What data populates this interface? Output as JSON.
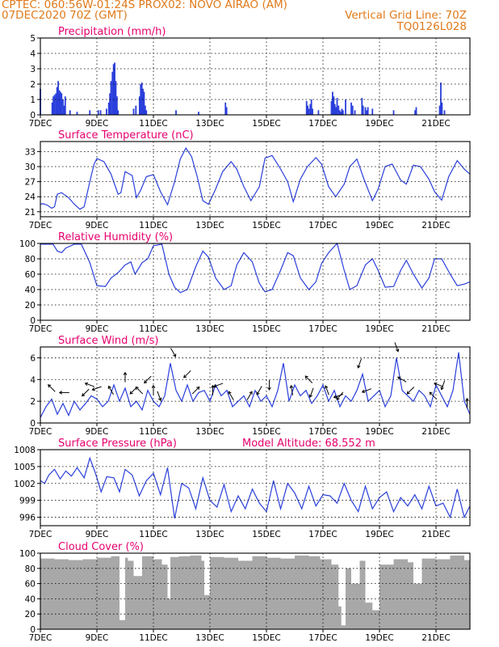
{
  "header": {
    "line1": "CPTEC:   060:56W-01:24S   PROX02: NOVO AIRAO (AM)",
    "line2": "07DEC2020 70Z (GMT)",
    "right1": "Vertical Grid Line: 70Z",
    "right2": "TQ0126L028"
  },
  "colors": {
    "line": "#2a3fdb",
    "bar": "#2a3fdb",
    "cloud": "#a8a8a8",
    "title": "#e6006e",
    "header": "#e07a1a",
    "grid": "#000000",
    "arrow": "#000000"
  },
  "chart_data": [
    {
      "type": "bar",
      "title": "Precipitation (mm/h)",
      "ylim": [
        0,
        5
      ],
      "yticks": [
        0,
        1,
        2,
        3,
        4,
        5
      ],
      "x_range": [
        7,
        22.2
      ],
      "xticks": [
        {
          "x": 7,
          "label": "7DEC"
        },
        {
          "x": 9,
          "label": "9DEC"
        },
        {
          "x": 11,
          "label": "11DEC"
        },
        {
          "x": 13,
          "label": "13DEC"
        },
        {
          "x": 15,
          "label": "15DEC"
        },
        {
          "x": 17,
          "label": "17DEC"
        },
        {
          "x": 19,
          "label": "19DEC"
        },
        {
          "x": 21,
          "label": "21DEC"
        }
      ],
      "x": [
        7.0,
        7.42,
        7.46,
        7.5,
        7.55,
        7.59,
        7.63,
        7.67,
        7.71,
        7.75,
        7.8,
        7.84,
        7.88,
        8.05,
        8.3,
        8.75,
        9.05,
        9.13,
        9.34,
        9.42,
        9.46,
        9.5,
        9.55,
        9.59,
        9.63,
        9.67,
        9.71,
        9.75,
        10.3,
        10.38,
        10.51,
        10.55,
        10.59,
        10.63,
        10.67,
        10.71,
        10.75,
        11.8,
        12.6,
        13.55,
        13.59,
        16.42,
        16.46,
        16.5,
        16.55,
        16.59,
        16.63,
        16.84,
        17.3,
        17.34,
        17.38,
        17.42,
        17.46,
        17.5,
        17.55,
        17.59,
        17.63,
        17.67,
        17.71,
        17.8,
        18.0,
        18.05,
        18.13,
        18.38,
        18.42,
        18.5,
        18.55,
        18.59,
        18.75,
        19.5,
        20.26,
        20.3,
        21.13,
        21.17,
        21.21,
        21.3
      ],
      "values": [
        1.7,
        0.8,
        1.2,
        1.3,
        1.4,
        1.8,
        2.2,
        1.6,
        1.5,
        1.4,
        1.0,
        0.6,
        1.2,
        0.3,
        0.2,
        0.3,
        0.3,
        0.3,
        0.4,
        0.8,
        1.4,
        2.2,
        2.8,
        3.3,
        3.4,
        2.2,
        1.2,
        0.3,
        0.4,
        0.6,
        1.2,
        2.0,
        2.1,
        1.7,
        1.5,
        0.6,
        0.3,
        0.3,
        0.2,
        0.8,
        0.5,
        0.9,
        0.6,
        0.4,
        0.7,
        1.0,
        0.4,
        0.3,
        0.9,
        1.5,
        1.2,
        0.7,
        0.5,
        1.1,
        0.6,
        0.3,
        0.2,
        0.4,
        0.3,
        1.0,
        0.8,
        0.6,
        0.3,
        1.1,
        0.6,
        0.5,
        0.3,
        0.5,
        0.4,
        0.3,
        0.3,
        0.5,
        0.6,
        2.1,
        0.8,
        0.3
      ]
    },
    {
      "type": "line",
      "title": "Surface Temperature (nC)",
      "ylim": [
        20,
        35
      ],
      "yticks": [
        21,
        24,
        27,
        30,
        33
      ],
      "x_range": [
        7,
        22.2
      ],
      "xticks": [
        {
          "x": 7,
          "label": "7DEC"
        },
        {
          "x": 9,
          "label": "9DEC"
        },
        {
          "x": 11,
          "label": "11DEC"
        },
        {
          "x": 13,
          "label": "13DEC"
        },
        {
          "x": 15,
          "label": "15DEC"
        },
        {
          "x": 17,
          "label": "17DEC"
        },
        {
          "x": 19,
          "label": "19DEC"
        },
        {
          "x": 21,
          "label": "21DEC"
        }
      ],
      "x": [
        7.0,
        7.1,
        7.25,
        7.4,
        7.5,
        7.6,
        7.75,
        8.0,
        8.2,
        8.4,
        8.55,
        8.75,
        8.9,
        9.0,
        9.25,
        9.5,
        9.75,
        9.85,
        10.0,
        10.25,
        10.4,
        10.55,
        10.75,
        11.0,
        11.25,
        11.5,
        11.75,
        11.95,
        12.15,
        12.35,
        12.55,
        12.75,
        12.95,
        13.2,
        13.45,
        13.75,
        13.95,
        14.2,
        14.45,
        14.75,
        14.95,
        15.2,
        15.45,
        15.75,
        15.95,
        16.2,
        16.45,
        16.75,
        16.95,
        17.2,
        17.45,
        17.75,
        17.95,
        18.2,
        18.45,
        18.75,
        18.95,
        19.2,
        19.45,
        19.75,
        19.95,
        20.2,
        20.45,
        20.75,
        20.95,
        21.2,
        21.45,
        21.75,
        22.0,
        22.2
      ],
      "values": [
        22.5,
        22.6,
        22.3,
        21.7,
        22.0,
        24.5,
        24.8,
        23.8,
        22.5,
        21.5,
        22.0,
        27.0,
        30.5,
        31.6,
        31.0,
        28.5,
        24.5,
        24.8,
        29.0,
        28.2,
        23.8,
        25.3,
        28.0,
        28.4,
        25.0,
        22.4,
        27.0,
        31.5,
        33.7,
        32.0,
        28.0,
        23.2,
        22.5,
        25.5,
        29.0,
        31.0,
        29.5,
        26.0,
        23.2,
        26.0,
        31.7,
        32.2,
        30.0,
        27.0,
        23.0,
        27.5,
        30.0,
        31.8,
        30.5,
        26.0,
        24.0,
        26.5,
        30.0,
        31.5,
        27.5,
        23.2,
        25.5,
        30.0,
        30.5,
        27.3,
        26.5,
        30.3,
        30.0,
        27.5,
        25.0,
        23.3,
        28.0,
        31.2,
        29.5,
        28.5
      ]
    },
    {
      "type": "line",
      "title": "Relative Humidity (%)",
      "ylim": [
        0,
        100
      ],
      "yticks": [
        0,
        20,
        40,
        60,
        80,
        100
      ],
      "x_range": [
        7,
        22.2
      ],
      "xticks": [
        {
          "x": 7,
          "label": "7DEC"
        },
        {
          "x": 9,
          "label": "9DEC"
        },
        {
          "x": 11,
          "label": "11DEC"
        },
        {
          "x": 13,
          "label": "13DEC"
        },
        {
          "x": 15,
          "label": "15DEC"
        },
        {
          "x": 17,
          "label": "17DEC"
        },
        {
          "x": 19,
          "label": "19DEC"
        },
        {
          "x": 21,
          "label": "21DEC"
        }
      ],
      "x": [
        7.0,
        7.3,
        7.45,
        7.6,
        7.75,
        7.9,
        8.2,
        8.45,
        8.75,
        9.0,
        9.3,
        9.5,
        9.75,
        10.0,
        10.2,
        10.35,
        10.6,
        10.8,
        11.0,
        11.3,
        11.55,
        11.75,
        11.95,
        12.2,
        12.5,
        12.75,
        12.95,
        13.2,
        13.5,
        13.75,
        13.95,
        14.2,
        14.5,
        14.75,
        14.95,
        15.2,
        15.5,
        15.75,
        15.95,
        16.2,
        16.5,
        16.75,
        16.95,
        17.2,
        17.5,
        17.75,
        17.95,
        18.2,
        18.5,
        18.75,
        18.95,
        19.2,
        19.5,
        19.75,
        19.95,
        20.2,
        20.5,
        20.75,
        20.95,
        21.2,
        21.5,
        21.75,
        22.0,
        22.2
      ],
      "values": [
        99,
        99,
        99,
        90,
        88,
        94,
        99,
        99,
        75,
        45,
        44,
        55,
        62,
        72,
        76,
        60,
        75,
        80,
        97,
        99,
        60,
        43,
        36,
        40,
        70,
        90,
        82,
        55,
        40,
        45,
        72,
        88,
        76,
        48,
        37,
        40,
        65,
        88,
        84,
        55,
        40,
        50,
        74,
        88,
        100,
        65,
        40,
        45,
        72,
        80,
        65,
        43,
        44,
        65,
        78,
        60,
        42,
        55,
        80,
        80,
        60,
        45,
        47,
        50
      ]
    },
    {
      "type": "line",
      "title": "Surface Wind (m/s)",
      "ylim": [
        0,
        7
      ],
      "yticks": [
        0,
        2,
        4,
        6
      ],
      "x_range": [
        7,
        22.2
      ],
      "xticks": [
        {
          "x": 7,
          "label": "7DEC"
        },
        {
          "x": 9,
          "label": "9DEC"
        },
        {
          "x": 11,
          "label": "11DEC"
        },
        {
          "x": 13,
          "label": "13DEC"
        },
        {
          "x": 15,
          "label": "15DEC"
        },
        {
          "x": 17,
          "label": "17DEC"
        },
        {
          "x": 19,
          "label": "19DEC"
        },
        {
          "x": 21,
          "label": "21DEC"
        }
      ],
      "x": [
        7.0,
        7.2,
        7.4,
        7.6,
        7.8,
        8.0,
        8.2,
        8.4,
        8.6,
        8.8,
        9.0,
        9.2,
        9.4,
        9.6,
        9.8,
        10.0,
        10.2,
        10.4,
        10.6,
        10.8,
        11.0,
        11.2,
        11.4,
        11.6,
        11.8,
        12.0,
        12.2,
        12.4,
        12.6,
        12.8,
        13.0,
        13.2,
        13.4,
        13.6,
        13.8,
        14.0,
        14.2,
        14.4,
        14.6,
        14.8,
        15.0,
        15.2,
        15.4,
        15.6,
        15.8,
        16.0,
        16.2,
        16.4,
        16.6,
        16.8,
        17.0,
        17.2,
        17.4,
        17.6,
        17.8,
        18.0,
        18.2,
        18.4,
        18.6,
        18.8,
        19.0,
        19.2,
        19.4,
        19.6,
        19.8,
        20.0,
        20.2,
        20.4,
        20.6,
        20.8,
        21.0,
        21.2,
        21.4,
        21.6,
        21.8,
        22.0,
        22.2
      ],
      "values": [
        0.5,
        1.5,
        2.2,
        0.8,
        1.8,
        0.7,
        2.0,
        1.2,
        1.8,
        2.5,
        2.2,
        1.5,
        2.0,
        3.5,
        2.0,
        3.2,
        1.5,
        2.0,
        1.2,
        3.0,
        2.0,
        1.5,
        2.5,
        5.5,
        3.0,
        2.0,
        3.5,
        2.0,
        2.8,
        3.0,
        2.0,
        3.5,
        2.5,
        3.0,
        1.5,
        2.0,
        2.5,
        1.5,
        3.0,
        2.0,
        2.5,
        1.5,
        3.0,
        5.5,
        2.0,
        3.5,
        2.5,
        3.0,
        1.8,
        2.5,
        3.5,
        2.0,
        3.0,
        1.5,
        2.5,
        2.0,
        3.0,
        4.5,
        2.0,
        2.5,
        3.0,
        1.5,
        2.5,
        6.0,
        3.0,
        2.5,
        2.0,
        3.0,
        2.5,
        1.5,
        3.5,
        2.5,
        1.5,
        3.0,
        6.5,
        2.0,
        0.8
      ],
      "arrows": [
        {
          "x": 7.4,
          "dir": 135
        },
        {
          "x": 7.85,
          "dir": 180
        },
        {
          "x": 8.6,
          "dir": 225
        },
        {
          "x": 8.75,
          "dir": 160
        },
        {
          "x": 9.0,
          "dir": 200
        },
        {
          "x": 9.5,
          "dir": 120
        },
        {
          "x": 10.0,
          "dir": 90
        },
        {
          "x": 10.3,
          "dir": 225
        },
        {
          "x": 10.5,
          "dir": 135
        },
        {
          "x": 10.8,
          "dir": 225
        },
        {
          "x": 11.0,
          "dir": 90
        },
        {
          "x": 11.2,
          "dir": 290
        },
        {
          "x": 11.7,
          "dir": 300
        },
        {
          "x": 12.2,
          "dir": 225
        },
        {
          "x": 12.5,
          "dir": 45
        },
        {
          "x": 13.1,
          "dir": 90
        },
        {
          "x": 13.3,
          "dir": 200
        },
        {
          "x": 13.75,
          "dir": 120
        },
        {
          "x": 14.4,
          "dir": 60
        },
        {
          "x": 14.75,
          "dir": 240
        },
        {
          "x": 15.1,
          "dir": 270
        },
        {
          "x": 15.9,
          "dir": 100
        },
        {
          "x": 16.5,
          "dir": 135
        },
        {
          "x": 16.6,
          "dir": 250
        },
        {
          "x": 17.15,
          "dir": 110
        },
        {
          "x": 17.55,
          "dir": 200
        },
        {
          "x": 17.6,
          "dir": 230
        },
        {
          "x": 18.3,
          "dir": 250
        },
        {
          "x": 18.55,
          "dir": 200
        },
        {
          "x": 19.6,
          "dir": 290
        },
        {
          "x": 19.8,
          "dir": 150
        },
        {
          "x": 20.1,
          "dir": 225
        },
        {
          "x": 20.9,
          "dir": 135
        },
        {
          "x": 21.1,
          "dir": 160
        },
        {
          "x": 21.25,
          "dir": 250
        },
        {
          "x": 22.1,
          "dir": 90
        }
      ]
    },
    {
      "type": "line",
      "title": "Surface Pressure (hPa)",
      "annotation": "Model Altitude: 68.552  m",
      "ylim": [
        994.5,
        1008
      ],
      "yticks": [
        996,
        999,
        1002,
        1005,
        1008
      ],
      "x_range": [
        7,
        22.2
      ],
      "xticks": [
        {
          "x": 7,
          "label": "7DEC"
        },
        {
          "x": 9,
          "label": "9DEC"
        },
        {
          "x": 11,
          "label": "11DEC"
        },
        {
          "x": 13,
          "label": "13DEC"
        },
        {
          "x": 15,
          "label": "15DEC"
        },
        {
          "x": 17,
          "label": "17DEC"
        },
        {
          "x": 19,
          "label": "19DEC"
        },
        {
          "x": 21,
          "label": "21DEC"
        }
      ],
      "x": [
        7.0,
        7.15,
        7.3,
        7.5,
        7.7,
        7.9,
        8.1,
        8.3,
        8.55,
        8.75,
        8.95,
        9.15,
        9.35,
        9.6,
        9.8,
        10.0,
        10.25,
        10.5,
        10.75,
        11.0,
        11.25,
        11.5,
        11.75,
        12.0,
        12.25,
        12.5,
        12.75,
        13.0,
        13.25,
        13.5,
        13.75,
        14.0,
        14.25,
        14.5,
        14.75,
        15.0,
        15.25,
        15.5,
        15.75,
        16.0,
        16.25,
        16.5,
        16.75,
        17.0,
        17.25,
        17.5,
        17.75,
        18.0,
        18.25,
        18.5,
        18.75,
        19.0,
        19.25,
        19.5,
        19.75,
        20.0,
        20.25,
        20.5,
        20.75,
        21.0,
        21.25,
        21.5,
        21.75,
        22.0,
        22.2
      ],
      "values": [
        1002.5,
        1002.0,
        1003.5,
        1004.5,
        1002.8,
        1004.2,
        1003.3,
        1004.8,
        1003.0,
        1006.5,
        1003.8,
        1000.5,
        1003.2,
        1003.0,
        1000.5,
        1004.5,
        1003.5,
        999.8,
        1002.5,
        1003.8,
        1000.0,
        1004.8,
        995.8,
        1002.0,
        1001.2,
        997.5,
        1003.0,
        999.0,
        997.8,
        1001.8,
        997.0,
        999.8,
        997.5,
        1001.0,
        998.5,
        997.0,
        1002.5,
        997.5,
        1002.0,
        1000.3,
        997.5,
        1001.5,
        998.0,
        1000.0,
        999.8,
        998.5,
        1002.0,
        999.0,
        997.0,
        1001.5,
        997.5,
        999.5,
        1000.5,
        997.0,
        999.5,
        998.0,
        1000.0,
        997.5,
        1001.5,
        998.0,
        998.5,
        996.0,
        1001.0,
        996.0,
        998.0
      ]
    },
    {
      "type": "area",
      "title": "Cloud Cover (%)",
      "ylim": [
        0,
        100
      ],
      "yticks": [
        0,
        20,
        40,
        60,
        80,
        100
      ],
      "x_range": [
        7,
        22.2
      ],
      "xticks": [
        {
          "x": 7,
          "label": "7DEC"
        },
        {
          "x": 9,
          "label": "9DEC"
        },
        {
          "x": 11,
          "label": "11DEC"
        },
        {
          "x": 13,
          "label": "13DEC"
        },
        {
          "x": 15,
          "label": "15DEC"
        },
        {
          "x": 17,
          "label": "17DEC"
        },
        {
          "x": 19,
          "label": "19DEC"
        },
        {
          "x": 21,
          "label": "21DEC"
        }
      ],
      "x": [
        7.0,
        7.5,
        8.0,
        8.5,
        9.0,
        9.5,
        9.8,
        10.0,
        10.1,
        10.3,
        10.6,
        11.0,
        11.3,
        11.5,
        11.6,
        11.9,
        12.3,
        12.7,
        12.8,
        13.0,
        13.5,
        14.0,
        14.5,
        15.0,
        15.5,
        16.0,
        16.5,
        16.9,
        17.3,
        17.55,
        17.65,
        17.8,
        18.0,
        18.3,
        18.5,
        18.75,
        19.0,
        19.5,
        20.0,
        20.2,
        20.5,
        21.0,
        21.5,
        22.0,
        22.2
      ],
      "values": [
        93,
        92,
        91,
        92,
        94,
        96,
        12,
        94,
        90,
        70,
        96,
        92,
        85,
        40,
        95,
        96,
        97,
        90,
        45,
        95,
        94,
        90,
        96,
        94,
        93,
        97,
        96,
        92,
        85,
        30,
        5,
        80,
        60,
        90,
        35,
        25,
        85,
        92,
        88,
        60,
        93,
        92,
        97,
        91,
        92
      ]
    }
  ]
}
